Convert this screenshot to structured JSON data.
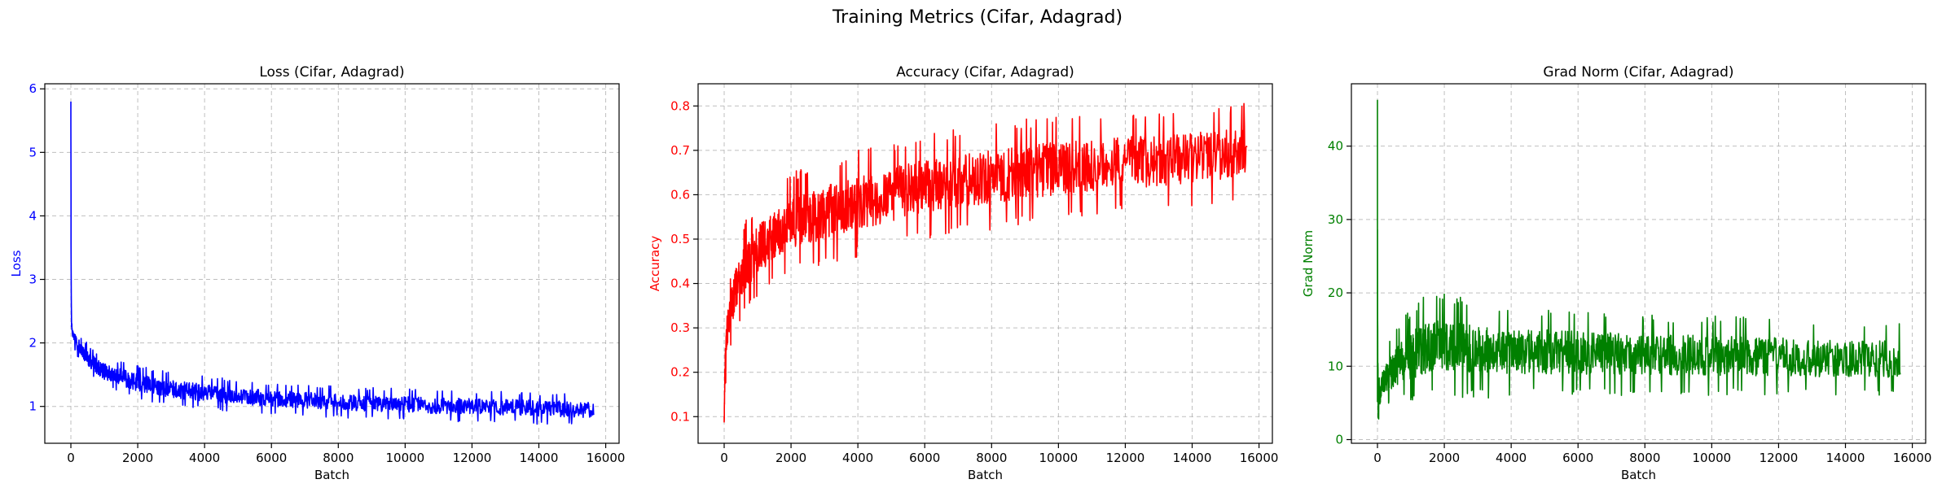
{
  "figure": {
    "title": "Training Metrics (Cifar, Adagrad)"
  },
  "chart_data": [
    {
      "type": "line",
      "title": "Loss (Cifar, Adagrad)",
      "xlabel": "Batch",
      "ylabel": "Loss",
      "color": "#0000ff",
      "xlim": [
        -780,
        16400
      ],
      "ylim": [
        0.42,
        6.08
      ],
      "xticks": [
        0,
        2000,
        4000,
        6000,
        8000,
        10000,
        12000,
        14000,
        16000
      ],
      "yticks": [
        1,
        2,
        3,
        4,
        5,
        6
      ],
      "ytick_labels": [
        "1",
        "2",
        "3",
        "4",
        "5",
        "6"
      ],
      "grid": true,
      "series": [
        {
          "x": [
            0,
            5,
            10,
            20,
            40,
            80,
            150,
            250,
            400,
            600,
            800,
            1000,
            1500,
            2000,
            3000,
            4000,
            5000,
            6000,
            7000,
            8000,
            9000,
            10000,
            11000,
            12000,
            13000,
            14000,
            15000,
            15640
          ],
          "upper": [
            5.8,
            4.2,
            3.3,
            2.5,
            2.3,
            2.25,
            2.2,
            2.15,
            2.05,
            1.95,
            1.85,
            1.8,
            1.72,
            1.65,
            1.55,
            1.48,
            1.42,
            1.38,
            1.35,
            1.32,
            1.3,
            1.28,
            1.26,
            1.25,
            1.24,
            1.22,
            1.2,
            1.18
          ],
          "lower": [
            5.8,
            3.2,
            2.6,
            2.2,
            2.05,
            1.95,
            1.85,
            1.72,
            1.6,
            1.48,
            1.38,
            1.3,
            1.2,
            1.1,
            1.0,
            0.95,
            0.9,
            0.87,
            0.85,
            0.82,
            0.8,
            0.78,
            0.76,
            0.75,
            0.74,
            0.72,
            0.71,
            0.7
          ]
        }
      ]
    },
    {
      "type": "line",
      "title": "Accuracy (Cifar, Adagrad)",
      "xlabel": "Batch",
      "ylabel": "Accuracy",
      "color": "#ff0000",
      "xlim": [
        -780,
        16400
      ],
      "ylim": [
        0.04,
        0.85
      ],
      "xticks": [
        0,
        2000,
        4000,
        6000,
        8000,
        10000,
        12000,
        14000,
        16000
      ],
      "yticks": [
        0.1,
        0.2,
        0.3,
        0.4,
        0.5,
        0.6,
        0.7,
        0.8
      ],
      "ytick_labels": [
        "0.1",
        "0.2",
        "0.3",
        "0.4",
        "0.5",
        "0.6",
        "0.7",
        "0.8"
      ],
      "grid": true,
      "series": [
        {
          "x": [
            0,
            20,
            50,
            100,
            200,
            400,
            700,
            1000,
            1500,
            2000,
            3000,
            4000,
            5000,
            6000,
            7000,
            8000,
            9000,
            10000,
            11000,
            12000,
            13000,
            14000,
            15000,
            15640
          ],
          "upper": [
            0.1,
            0.25,
            0.33,
            0.38,
            0.43,
            0.5,
            0.55,
            0.58,
            0.62,
            0.65,
            0.68,
            0.7,
            0.72,
            0.74,
            0.75,
            0.76,
            0.77,
            0.78,
            0.78,
            0.79,
            0.79,
            0.8,
            0.8,
            0.81
          ],
          "lower": [
            0.07,
            0.12,
            0.18,
            0.22,
            0.26,
            0.3,
            0.34,
            0.37,
            0.4,
            0.42,
            0.44,
            0.46,
            0.48,
            0.5,
            0.51,
            0.52,
            0.53,
            0.54,
            0.55,
            0.56,
            0.56,
            0.57,
            0.58,
            0.6
          ]
        }
      ]
    },
    {
      "type": "line",
      "title": "Grad Norm (Cifar, Adagrad)",
      "xlabel": "Batch",
      "ylabel": "Grad Norm",
      "color": "#008000",
      "xlim": [
        -780,
        16400
      ],
      "ylim": [
        -0.5,
        48.5
      ],
      "xticks": [
        0,
        2000,
        4000,
        6000,
        8000,
        10000,
        12000,
        14000,
        16000
      ],
      "yticks": [
        0,
        10,
        20,
        30,
        40
      ],
      "ytick_labels": [
        "0",
        "10",
        "20",
        "30",
        "40"
      ],
      "grid": true,
      "series": [
        {
          "x": [
            0,
            10,
            30,
            60,
            100,
            200,
            400,
            700,
            1000,
            1500,
            2000,
            3000,
            4000,
            6000,
            8000,
            10000,
            12000,
            14000,
            15640
          ],
          "upper": [
            46.3,
            20,
            8,
            9,
            10,
            12,
            14,
            16,
            18,
            20,
            20,
            19,
            18,
            18,
            17,
            17,
            16.5,
            16,
            16
          ],
          "lower": [
            2,
            2,
            2.5,
            3,
            3.5,
            4,
            4.5,
            5,
            5,
            5.5,
            5.5,
            5.5,
            5.8,
            5.8,
            6,
            6,
            6,
            6,
            6
          ]
        }
      ]
    }
  ]
}
